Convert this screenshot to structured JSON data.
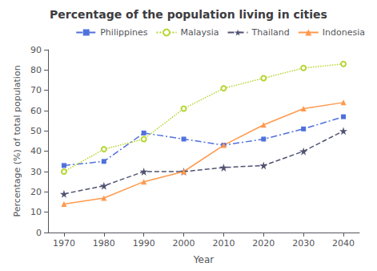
{
  "chart_data": {
    "type": "line",
    "title": "Percentage of the population living in cities",
    "x_label": "Year",
    "y_label": "Percentage (%) of total population",
    "x": [
      1970,
      1980,
      1990,
      2000,
      2010,
      2020,
      2030,
      2040
    ],
    "series": [
      {
        "name": "Philippines",
        "values": [
          33,
          35,
          49,
          46,
          43,
          46,
          51,
          57
        ],
        "marker": "square",
        "line_style": "dashdot"
      },
      {
        "name": "Malaysia",
        "values": [
          30,
          41,
          46,
          61,
          71,
          76,
          81,
          83
        ],
        "marker": "circle",
        "line_style": "dotted"
      },
      {
        "name": "Thailand",
        "values": [
          19,
          23,
          30,
          30,
          32,
          33,
          40,
          50
        ],
        "marker": "star",
        "line_style": "dashed"
      },
      {
        "name": "Indonesia",
        "values": [
          14,
          17,
          25,
          30,
          43,
          53,
          61,
          64
        ],
        "marker": "triangle",
        "line_style": "solid"
      }
    ],
    "xlim": [
      1966,
      2044
    ],
    "xticks": [
      1970,
      1980,
      1990,
      2000,
      2010,
      2020,
      2030,
      2040
    ],
    "ylim": [
      0,
      90
    ],
    "yticks": [
      0,
      10,
      20,
      30,
      40,
      50,
      60,
      70,
      80,
      90
    ],
    "grid": false,
    "legend": "upper right"
  }
}
